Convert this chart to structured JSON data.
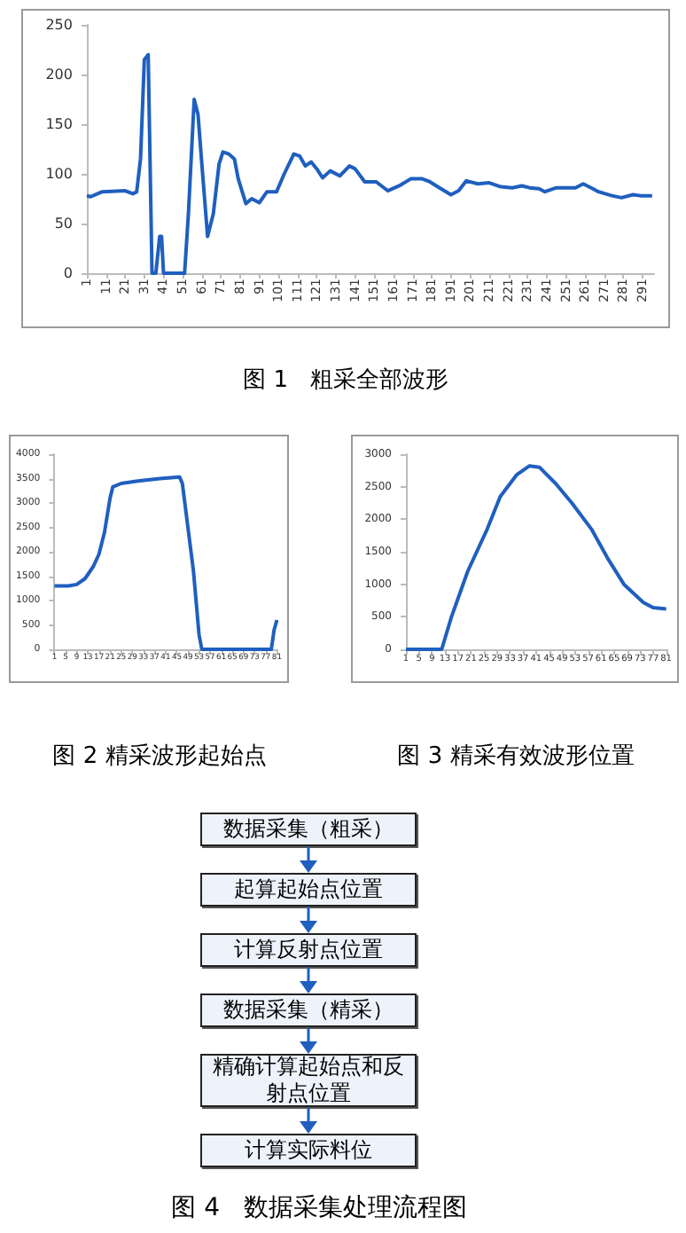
{
  "chart_data": [
    {
      "type": "line",
      "title": "图 1   粗采全部波形",
      "x": [
        1,
        3,
        9,
        21,
        25,
        27,
        29,
        31,
        33,
        35,
        37,
        39,
        40,
        41,
        52,
        54,
        57,
        59,
        61,
        64,
        67,
        70,
        72,
        75,
        78,
        80,
        84,
        87,
        91,
        95,
        100,
        104,
        109,
        112,
        115,
        118,
        121,
        124,
        128,
        133,
        138,
        141,
        146,
        152,
        158,
        164,
        170,
        176,
        180,
        185,
        191,
        195,
        199,
        205,
        211,
        217,
        223,
        228,
        232,
        237,
        240,
        246,
        256,
        260,
        265,
        268,
        275,
        280,
        286,
        290,
        296
      ],
      "values": [
        78,
        77,
        82,
        83,
        80,
        82,
        115,
        215,
        220,
        0,
        0,
        37,
        37,
        0,
        0,
        60,
        175,
        160,
        110,
        37,
        60,
        110,
        122,
        120,
        115,
        95,
        70,
        75,
        71,
        82,
        82,
        100,
        120,
        118,
        108,
        112,
        105,
        96,
        103,
        98,
        108,
        105,
        92,
        92,
        83,
        88,
        95,
        95,
        92,
        86,
        79,
        83,
        93,
        90,
        91,
        87,
        86,
        88,
        86,
        85,
        82,
        86,
        86,
        90,
        85,
        82,
        78,
        76,
        79,
        78,
        78
      ],
      "color": "#1f5fbf",
      "xlim": [
        1,
        297
      ],
      "xticks": [
        1,
        11,
        21,
        31,
        41,
        51,
        61,
        71,
        81,
        91,
        101,
        111,
        121,
        131,
        141,
        151,
        161,
        171,
        181,
        191,
        201,
        211,
        221,
        231,
        241,
        251,
        261,
        271,
        281,
        291
      ],
      "ylim": [
        0,
        250
      ],
      "yticks": [
        0,
        50,
        100,
        150,
        200,
        250
      ],
      "grid": false,
      "marker": "none"
    },
    {
      "type": "line",
      "title": "图 2 精采波形起始点",
      "x": [
        1,
        6,
        9,
        12,
        15,
        17,
        19,
        21,
        22,
        25,
        31,
        39,
        46,
        47,
        51,
        53,
        54,
        79,
        80,
        81
      ],
      "values": [
        1300,
        1300,
        1330,
        1450,
        1700,
        1950,
        2400,
        3100,
        3330,
        3400,
        3450,
        3500,
        3530,
        3400,
        1600,
        300,
        0,
        0,
        400,
        600
      ],
      "color": "#1f5fbf",
      "xlim": [
        1,
        81
      ],
      "xticks": [
        1,
        5,
        9,
        13,
        17,
        21,
        25,
        29,
        33,
        37,
        41,
        45,
        49,
        53,
        57,
        61,
        65,
        69,
        73,
        77,
        81
      ],
      "ylim": [
        0,
        4000
      ],
      "yticks": [
        0,
        500,
        1000,
        1500,
        2000,
        2500,
        3000,
        3500,
        4000
      ],
      "grid": false,
      "marker": "none"
    },
    {
      "type": "line",
      "title": "图 3 精采有效波形位置",
      "x": [
        1,
        12,
        15,
        20,
        26,
        30,
        35,
        39,
        42,
        47,
        52,
        58,
        63,
        68,
        74,
        77,
        81
      ],
      "values": [
        0,
        0,
        500,
        1200,
        1850,
        2350,
        2680,
        2820,
        2800,
        2550,
        2250,
        1850,
        1400,
        1000,
        720,
        640,
        620
      ],
      "color": "#1f5fbf",
      "xlim": [
        1,
        81
      ],
      "xticks": [
        1,
        5,
        9,
        13,
        17,
        21,
        25,
        29,
        33,
        37,
        41,
        45,
        49,
        53,
        57,
        61,
        65,
        69,
        73,
        77,
        81
      ],
      "ylim": [
        0,
        3000
      ],
      "yticks": [
        0,
        500,
        1000,
        1500,
        2000,
        2500,
        3000
      ],
      "grid": false,
      "marker": "none"
    },
    {
      "type": "other",
      "title": "图 4   数据采集处理流程图",
      "annotations": [
        "数据采集（粗采）",
        "起算起始点位置",
        "计算反射点位置",
        "数据采集（精采）",
        "精确计算起始点和反射点位置",
        "计算实际料位"
      ]
    }
  ]
}
